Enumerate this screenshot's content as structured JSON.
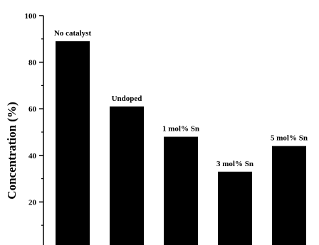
{
  "chart_data": {
    "type": "bar",
    "categories": [
      "No catalyst",
      "Undoped",
      "1 mol% Sn",
      "3 mol% Sn",
      "5 mol% Sn"
    ],
    "values": [
      89,
      61,
      48,
      33,
      44
    ],
    "data_labels": [
      "No catalyst",
      "Undoped",
      "1 mol% Sn",
      "3 mol% Sn",
      "5 mol% Sn"
    ],
    "title": "",
    "xlabel": "",
    "ylabel": "Concentration (%)",
    "ylim": [
      0,
      100
    ],
    "yticks": [
      0,
      20,
      40,
      60,
      80,
      100
    ],
    "grid": false,
    "bar_color": "#000000"
  }
}
